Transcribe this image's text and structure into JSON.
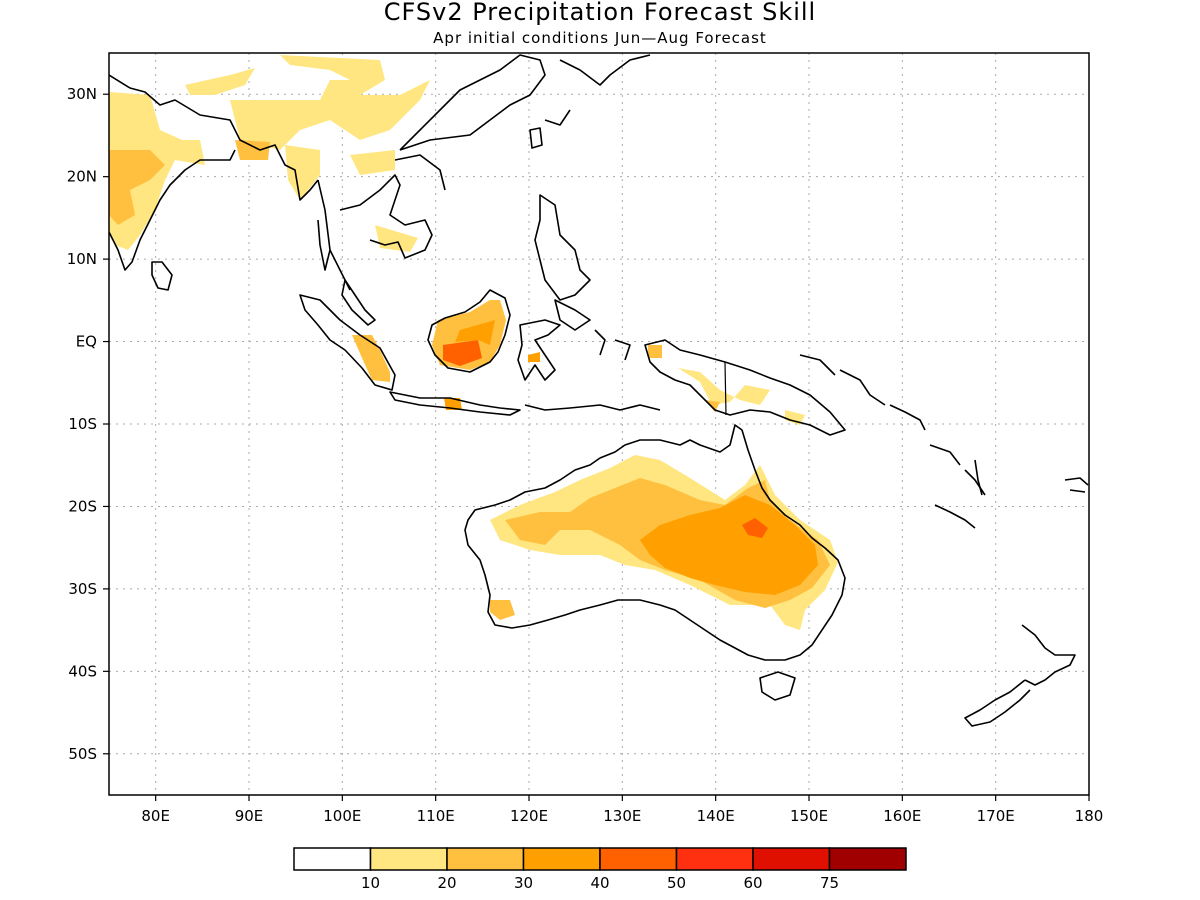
{
  "title": "CFSv2 Precipitation Forecast Skill",
  "subtitle": "Apr initial conditions  Jun—Aug Forecast",
  "map": {
    "region": "Indo-Pacific / Australia",
    "lon_range": [
      75,
      180
    ],
    "lat_range": [
      -55,
      35
    ],
    "grid": true,
    "lat_ticks": [
      "30N",
      "20N",
      "10N",
      "EQ",
      "10S",
      "20S",
      "30S",
      "40S",
      "50S"
    ],
    "lon_ticks": [
      "80E",
      "90E",
      "100E",
      "110E",
      "120E",
      "130E",
      "140E",
      "150E",
      "160E",
      "170E",
      "180"
    ]
  },
  "legend": {
    "labels": [
      "10",
      "20",
      "30",
      "40",
      "50",
      "60",
      "75"
    ],
    "colors": [
      "#ffffff",
      "#ffe680",
      "#ffc040",
      "#ffa000",
      "#ff6000",
      "#ff3010",
      "#e01000",
      "#a00000"
    ]
  }
}
